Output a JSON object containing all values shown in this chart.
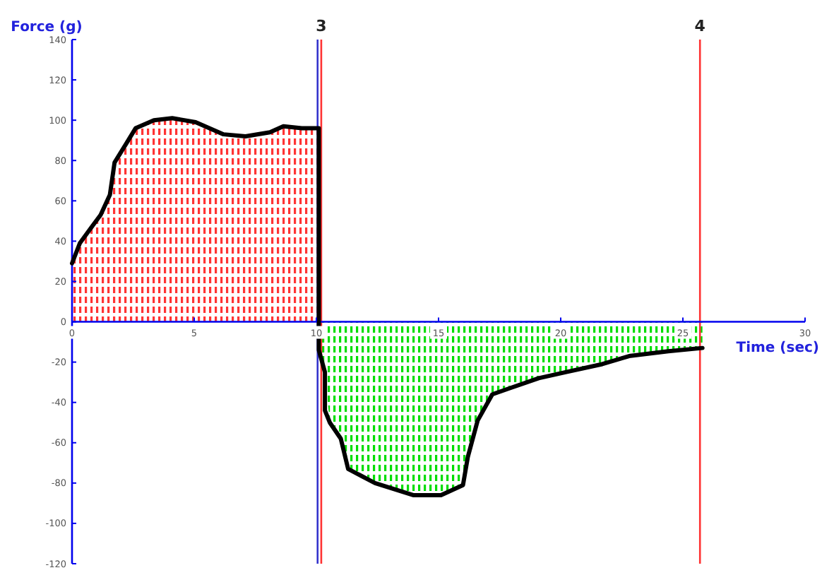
{
  "chart_data": {
    "type": "line",
    "ylabel": "Force (g)",
    "xlabel": "Time (sec)",
    "xlim": [
      0,
      30
    ],
    "ylim": [
      -120,
      140
    ],
    "xticks": [
      0,
      5,
      10,
      15,
      20,
      25,
      30
    ],
    "yticks": [
      -120,
      -100,
      -80,
      -60,
      -40,
      -20,
      0,
      20,
      40,
      60,
      80,
      100,
      120,
      140
    ],
    "grid": false,
    "marker": "none",
    "series": [
      {
        "type": "area",
        "color": "#ff3333",
        "x": [
          0,
          0.32,
          0.8,
          1.17,
          1.55,
          1.74,
          2.2,
          2.6,
          3.35,
          4.1,
          5.06,
          6.2,
          7.1,
          8.1,
          8.65,
          9.4,
          10.1
        ],
        "values": [
          29,
          39,
          47,
          53,
          63,
          79,
          88,
          96,
          100,
          101,
          99,
          93,
          92,
          94,
          97,
          96,
          96
        ]
      },
      {
        "type": "area",
        "color": "#00dd00",
        "x": [
          10.1,
          10.35,
          10.55,
          11,
          11.3,
          12.4,
          13.96,
          15.1,
          16,
          16.2,
          16.6,
          17.2,
          17.9,
          19.1,
          20.2,
          21.7,
          22.8,
          24.4,
          25.8
        ],
        "values": [
          -14,
          -25,
          -50,
          -58,
          -73,
          -80,
          -86,
          -86,
          -81,
          -67,
          -49,
          -36,
          -33,
          -28,
          -25,
          -21,
          -17,
          -14.6,
          -13
        ]
      },
      {
        "color": "#000000",
        "x": [
          0,
          0.32,
          0.8,
          1.17,
          1.55,
          1.74,
          2.2,
          2.6,
          3.35,
          4.1,
          5.06,
          6.2,
          7.1,
          8.1,
          8.65,
          9.4,
          10.1,
          10.1,
          10.35,
          10.35,
          10.55,
          11,
          11.3,
          12.4,
          13.96,
          15.1,
          16,
          16.2,
          16.6,
          17.2,
          17.9,
          19.1,
          20.2,
          21.7,
          22.8,
          24.4,
          25.8
        ],
        "values": [
          29,
          39,
          47,
          53,
          63,
          79,
          88,
          96,
          100,
          101,
          99,
          93,
          92,
          94,
          97,
          96,
          96,
          -14,
          -25,
          -44,
          -50,
          -58,
          -73,
          -80,
          -86,
          -86,
          -81,
          -67,
          -49,
          -36,
          -33,
          -28,
          -25,
          -21,
          -17,
          -14.6,
          -13
        ]
      }
    ],
    "ref_lines": [
      {
        "axis": "x",
        "value": 10.05,
        "color": "#3333cc"
      },
      {
        "axis": "x",
        "value": 10.2,
        "color": "#ff3333"
      },
      {
        "axis": "x",
        "value": 25.7,
        "color": "#ff3333"
      }
    ],
    "annotations": [
      {
        "text": "3",
        "x": 10.2,
        "y": 140
      },
      {
        "text": "4",
        "x": 25.7,
        "y": 140
      }
    ]
  }
}
